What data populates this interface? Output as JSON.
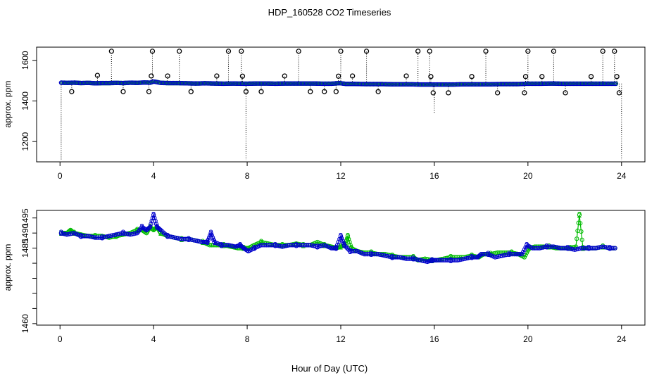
{
  "chart_data": [
    {
      "type": "scatter",
      "title": "HDP_160528  CO2 Timeseries",
      "xlabel": "",
      "ylabel": "approx. ppm",
      "xlim": [
        -1,
        25
      ],
      "ylim": [
        1100,
        1665
      ],
      "xticks": [
        0,
        4,
        8,
        12,
        16,
        20,
        24
      ],
      "yticks": [
        1200,
        1400,
        1600
      ],
      "grid": false,
      "baseline": {
        "x": [
          0.05,
          0.3,
          0.6,
          0.9,
          1.2,
          1.5,
          1.8,
          2.1,
          2.4,
          2.7,
          3.0,
          3.3,
          3.6,
          3.85,
          4.0,
          4.3,
          4.6,
          5.0,
          5.4,
          5.8,
          6.2,
          6.6,
          7.0,
          7.4,
          7.8,
          8.0,
          8.4,
          8.8,
          9.2,
          9.6,
          10.0,
          10.4,
          10.8,
          11.2,
          11.6,
          11.95,
          12.2,
          12.6,
          13.0,
          13.4,
          13.8,
          14.2,
          14.6,
          15.0,
          15.4,
          15.8,
          16.0,
          16.4,
          16.8,
          17.2,
          17.6,
          18.0,
          18.4,
          18.8,
          19.2,
          19.6,
          19.95,
          20.2,
          20.6,
          21.0,
          21.4,
          21.8,
          22.2,
          22.6,
          23.0,
          23.4,
          23.75
        ],
        "y": [
          1490,
          1489,
          1490,
          1488,
          1489,
          1487,
          1488,
          1488,
          1489,
          1488,
          1490,
          1489,
          1491,
          1490,
          1496,
          1489,
          1488,
          1488,
          1487,
          1486,
          1487,
          1486,
          1485,
          1486,
          1485,
          1485,
          1486,
          1486,
          1485,
          1486,
          1486,
          1486,
          1486,
          1485,
          1485,
          1488,
          1484,
          1484,
          1483,
          1483,
          1483,
          1482,
          1482,
          1482,
          1481,
          1481,
          1481,
          1481,
          1481,
          1482,
          1482,
          1482,
          1482,
          1483,
          1483,
          1483,
          1485,
          1485,
          1485,
          1486,
          1485,
          1485,
          1485,
          1485,
          1485,
          1485,
          1485
        ]
      },
      "outliers": {
        "x": [
          0.5,
          1.6,
          2.2,
          2.7,
          3.8,
          3.9,
          3.95,
          4.6,
          5.1,
          5.6,
          6.7,
          7.2,
          7.75,
          7.8,
          7.95,
          8.6,
          9.6,
          10.2,
          10.7,
          11.3,
          11.8,
          11.9,
          12.0,
          12.5,
          13.1,
          13.6,
          14.8,
          15.3,
          15.8,
          15.85,
          15.95,
          16.6,
          17.6,
          18.2,
          18.7,
          19.85,
          19.9,
          20.0,
          20.6,
          21.1,
          21.6,
          22.7,
          23.2,
          23.7,
          23.8,
          23.9
        ],
        "y": [
          1446,
          1526,
          1645,
          1446,
          1446,
          1523,
          1645,
          1523,
          1645,
          1446,
          1523,
          1645,
          1645,
          1522,
          1446,
          1446,
          1523,
          1645,
          1446,
          1446,
          1446,
          1522,
          1645,
          1523,
          1645,
          1446,
          1523,
          1645,
          1645,
          1520,
          1440,
          1440,
          1520,
          1645,
          1440,
          1440,
          1520,
          1645,
          1520,
          1645,
          1440,
          1520,
          1645,
          1645,
          1520,
          1440
        ]
      },
      "vertical_spikes_low": {
        "x": [
          0.05,
          7.95,
          16.0,
          24.0
        ],
        "y": [
          1110,
          1110,
          1340,
          1110
        ]
      },
      "series": [
        {
          "name": "",
          "color": "#0000cc"
        },
        {
          "name": "",
          "color": "#00bb00"
        }
      ]
    },
    {
      "type": "line",
      "title": "",
      "xlabel": "Hour of Day (UTC)",
      "ylabel": "approx. ppm",
      "xlim": [
        -1,
        25
      ],
      "ylim": [
        1459.5,
        1497.5
      ],
      "xticks": [
        0,
        4,
        8,
        12,
        16,
        20,
        24
      ],
      "yticks": [
        1460,
        1465,
        1470,
        1475,
        1480,
        1485,
        1490,
        1495
      ],
      "ytick_labels_shown": [
        1460,
        1485,
        1490,
        1495
      ],
      "grid": false,
      "series": [
        {
          "name": "",
          "marker": "3",
          "color": "#0000cc",
          "x": [
            0.05,
            0.3,
            0.6,
            0.9,
            1.2,
            1.5,
            1.8,
            2.1,
            2.4,
            2.7,
            3.0,
            3.3,
            3.5,
            3.7,
            3.85,
            4.0,
            4.15,
            4.3,
            4.6,
            4.9,
            5.2,
            5.5,
            5.8,
            6.1,
            6.3,
            6.45,
            6.6,
            6.9,
            7.2,
            7.5,
            7.7,
            7.85,
            8.05,
            8.3,
            8.6,
            8.9,
            9.2,
            9.5,
            9.8,
            10.1,
            10.4,
            10.7,
            11.0,
            11.3,
            11.6,
            11.8,
            12.0,
            12.15,
            12.4,
            12.7,
            13.0,
            13.3,
            13.6,
            13.9,
            14.2,
            14.5,
            14.8,
            15.1,
            15.4,
            15.7,
            15.9,
            16.1,
            16.4,
            16.7,
            17.0,
            17.3,
            17.6,
            17.85,
            18.0,
            18.3,
            18.6,
            18.9,
            19.2,
            19.5,
            19.75,
            19.95,
            20.2,
            20.5,
            20.8,
            21.1,
            21.4,
            21.7,
            22.0,
            22.3,
            22.6,
            22.9,
            23.2,
            23.5,
            23.8
          ],
          "y": [
            1490,
            1489.5,
            1490,
            1489,
            1489,
            1488.5,
            1488.5,
            1489,
            1489.5,
            1490,
            1489.5,
            1490,
            1492,
            1491,
            1492,
            1496,
            1492,
            1491,
            1489,
            1488.5,
            1488,
            1488,
            1487.5,
            1487,
            1487,
            1490,
            1487,
            1486,
            1486,
            1485.5,
            1486,
            1485,
            1484,
            1485,
            1486,
            1486,
            1486,
            1485.5,
            1486,
            1486,
            1486,
            1486,
            1485.5,
            1486,
            1485,
            1485,
            1489,
            1486,
            1484,
            1484,
            1483,
            1483,
            1483,
            1482.5,
            1482,
            1482,
            1481.5,
            1481.5,
            1481,
            1480.5,
            1481,
            1481,
            1481,
            1481,
            1481,
            1481.5,
            1482,
            1482,
            1483,
            1483,
            1482,
            1482.5,
            1483,
            1483,
            1483,
            1486,
            1485,
            1485,
            1485.5,
            1485.5,
            1485,
            1485,
            1484.5,
            1485,
            1485,
            1485,
            1485.5,
            1485,
            1485
          ]
        },
        {
          "name": "",
          "marker": "2",
          "color": "#00bb00",
          "x": [
            0.05,
            0.3,
            0.45,
            0.6,
            0.9,
            1.2,
            1.5,
            1.8,
            2.1,
            2.4,
            2.7,
            3.0,
            3.3,
            3.5,
            3.7,
            3.85,
            4.0,
            4.15,
            4.3,
            4.6,
            4.9,
            5.2,
            5.5,
            5.8,
            6.1,
            6.4,
            6.7,
            7.0,
            7.3,
            7.6,
            7.85,
            8.05,
            8.3,
            8.6,
            8.9,
            9.2,
            9.5,
            9.8,
            10.1,
            10.4,
            10.7,
            11.0,
            11.3,
            11.6,
            11.8,
            12.0,
            12.2,
            12.3,
            12.45,
            12.7,
            13.0,
            13.3,
            13.6,
            13.9,
            14.2,
            14.5,
            14.8,
            15.1,
            15.3,
            15.6,
            15.9,
            16.1,
            16.4,
            16.7,
            17.0,
            17.3,
            17.6,
            17.9,
            18.1,
            18.4,
            18.7,
            19.0,
            19.3,
            19.6,
            19.85,
            20.05,
            20.3,
            20.6,
            20.9,
            21.2,
            21.5,
            21.8,
            22.05,
            22.2,
            22.35,
            22.6,
            22.9,
            23.2,
            23.5,
            23.8
          ],
          "y": [
            1490,
            1490,
            1491,
            1490,
            1489.5,
            1489,
            1489,
            1489,
            1488.5,
            1489,
            1489.5,
            1490,
            1491,
            1491,
            1490,
            1492,
            1491,
            1492,
            1490,
            1489,
            1488.5,
            1488,
            1488,
            1487.5,
            1487,
            1486,
            1486,
            1486,
            1485.5,
            1485,
            1485,
            1485,
            1486,
            1487,
            1486.5,
            1486,
            1486,
            1486,
            1486.5,
            1486,
            1486,
            1487,
            1486,
            1485.5,
            1485,
            1485.5,
            1486,
            1489,
            1485,
            1484,
            1483.5,
            1483.5,
            1483,
            1483,
            1482.5,
            1482,
            1482,
            1482,
            1481,
            1481.5,
            1481,
            1481,
            1481.5,
            1482,
            1482,
            1482,
            1482.5,
            1482,
            1483,
            1483,
            1483.5,
            1483.5,
            1483.5,
            1483,
            1482,
            1485,
            1485.5,
            1485.5,
            1485.5,
            1485,
            1485,
            1485,
            1485.5,
            1496,
            1485,
            1485,
            1485,
            1485.5,
            1485,
            1485
          ]
        }
      ]
    }
  ]
}
